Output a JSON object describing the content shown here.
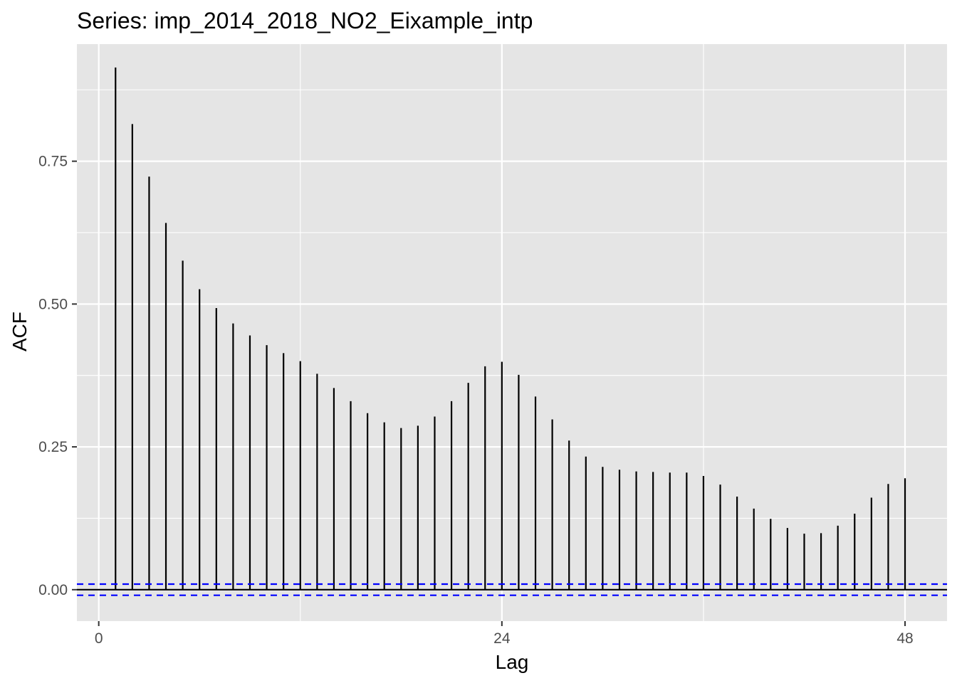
{
  "chart_data": {
    "type": "bar",
    "title": "Series: imp_2014_2018_NO2_Eixample_intp",
    "xlabel": "Lag",
    "ylabel": "ACF",
    "xlim": [
      -1.3,
      50.5
    ],
    "ylim": [
      -0.055,
      0.955
    ],
    "x_ticks": [
      0,
      24,
      48
    ],
    "x_minor_ticks": [
      12,
      36
    ],
    "y_ticks": [
      0,
      0.25,
      0.5,
      0.75
    ],
    "y_minor_ticks": [
      0.125,
      0.375,
      0.625,
      0.875
    ],
    "grid": true,
    "confidence_bound": 0.0098,
    "x": [
      1,
      2,
      3,
      4,
      5,
      6,
      7,
      8,
      9,
      10,
      11,
      12,
      13,
      14,
      15,
      16,
      17,
      18,
      19,
      20,
      21,
      22,
      23,
      24,
      25,
      26,
      27,
      28,
      29,
      30,
      31,
      32,
      33,
      34,
      35,
      36,
      37,
      38,
      39,
      40,
      41,
      42,
      43,
      44,
      45,
      46,
      47,
      48
    ],
    "values": [
      0.914,
      0.815,
      0.723,
      0.642,
      0.576,
      0.526,
      0.493,
      0.466,
      0.445,
      0.428,
      0.414,
      0.4,
      0.378,
      0.353,
      0.33,
      0.309,
      0.293,
      0.283,
      0.287,
      0.303,
      0.33,
      0.362,
      0.391,
      0.399,
      0.376,
      0.338,
      0.298,
      0.261,
      0.233,
      0.215,
      0.21,
      0.207,
      0.206,
      0.205,
      0.205,
      0.199,
      0.184,
      0.163,
      0.142,
      0.124,
      0.108,
      0.098,
      0.099,
      0.112,
      0.133,
      0.161,
      0.185,
      0.195
    ],
    "colors": {
      "panel": "#e5e5e5",
      "grid": "#ffffff",
      "bar": "#000000",
      "zero_line": "#000000",
      "ci_line": "#0000ff",
      "tick_label": "#4d4d4d",
      "tick_mark": "#333333"
    }
  }
}
